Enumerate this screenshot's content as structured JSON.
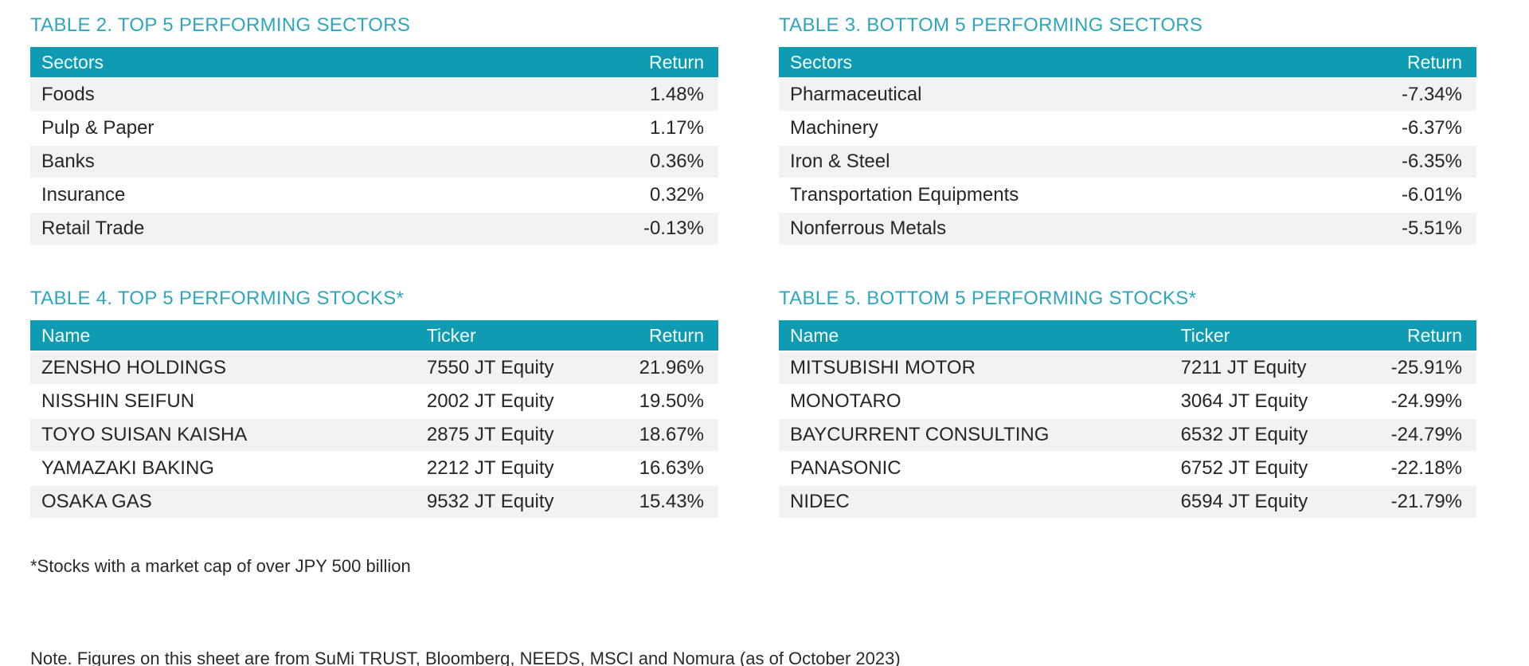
{
  "colors": {
    "header_bg": "#0f9cb2",
    "title_text": "#2ea6bc",
    "row_stripe": "#f2f2f2",
    "header_text": "#f4fdff",
    "body_text": "#262626"
  },
  "tables": [
    {
      "title": "TABLE 2. TOP 5 PERFORMING SECTORS",
      "columns": [
        "Sectors",
        "Return"
      ],
      "rows": [
        [
          "Foods",
          "1.48%"
        ],
        [
          "Pulp & Paper",
          "1.17%"
        ],
        [
          "Banks",
          "0.36%"
        ],
        [
          "Insurance",
          "0.32%"
        ],
        [
          "Retail Trade",
          "-0.13%"
        ]
      ]
    },
    {
      "title": "TABLE 3. BOTTOM 5 PERFORMING SECTORS",
      "columns": [
        "Sectors",
        "Return"
      ],
      "rows": [
        [
          "Pharmaceutical",
          "-7.34%"
        ],
        [
          "Machinery",
          "-6.37%"
        ],
        [
          "Iron & Steel",
          "-6.35%"
        ],
        [
          "Transportation Equipments",
          "-6.01%"
        ],
        [
          "Nonferrous Metals",
          "-5.51%"
        ]
      ]
    },
    {
      "title": "TABLE 4. TOP 5 PERFORMING STOCKS*",
      "columns": [
        "Name",
        "Ticker",
        "Return"
      ],
      "rows": [
        [
          "ZENSHO HOLDINGS",
          "7550 JT Equity",
          "21.96%"
        ],
        [
          "NISSHIN SEIFUN",
          "2002 JT Equity",
          "19.50%"
        ],
        [
          "TOYO SUISAN KAISHA",
          "2875 JT Equity",
          "18.67%"
        ],
        [
          "YAMAZAKI BAKING",
          "2212 JT Equity",
          "16.63%"
        ],
        [
          "OSAKA GAS",
          "9532 JT Equity",
          "15.43%"
        ]
      ]
    },
    {
      "title": "TABLE 5. BOTTOM 5 PERFORMING STOCKS*",
      "columns": [
        "Name",
        "Ticker",
        "Return"
      ],
      "rows": [
        [
          "MITSUBISHI MOTOR",
          "7211 JT Equity",
          "-25.91%"
        ],
        [
          "MONOTARO",
          "3064 JT Equity",
          "-24.99%"
        ],
        [
          "BAYCURRENT CONSULTING",
          "6532 JT Equity",
          "-24.79%"
        ],
        [
          "PANASONIC",
          "6752 JT Equity",
          "-22.18%"
        ],
        [
          "NIDEC",
          "6594 JT Equity",
          "-21.79%"
        ]
      ]
    }
  ],
  "footnote": "*Stocks with a market cap of over JPY 500 billion",
  "note": "Note. Figures on this sheet are from SuMi TRUST, Bloomberg, NEEDS, MSCI and Nomura (as of October 2023)"
}
